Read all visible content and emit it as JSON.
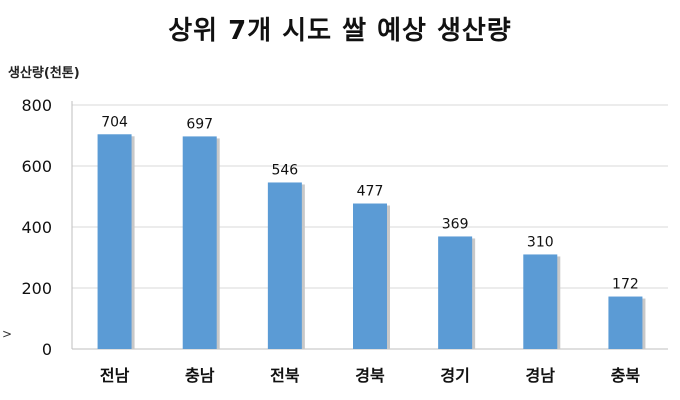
{
  "chart_data": {
    "type": "bar",
    "title": "상위 7개 시도 쌀 예상 생산량",
    "ylabel": "생산량(천톤)",
    "xlabel": "",
    "categories": [
      "전남",
      "충남",
      "전북",
      "경북",
      "경기",
      "경남",
      "충북"
    ],
    "values": [
      704,
      697,
      546,
      477,
      369,
      310,
      172
    ],
    "ylim": [
      0,
      800
    ],
    "yticks": [
      0,
      200,
      400,
      600,
      800
    ],
    "grid": true,
    "bar_color": "#5b9bd5",
    "bar_shadow_color": "#c8c8c8",
    "grid_color": "#d9d9d9"
  },
  "side_mark": ">"
}
